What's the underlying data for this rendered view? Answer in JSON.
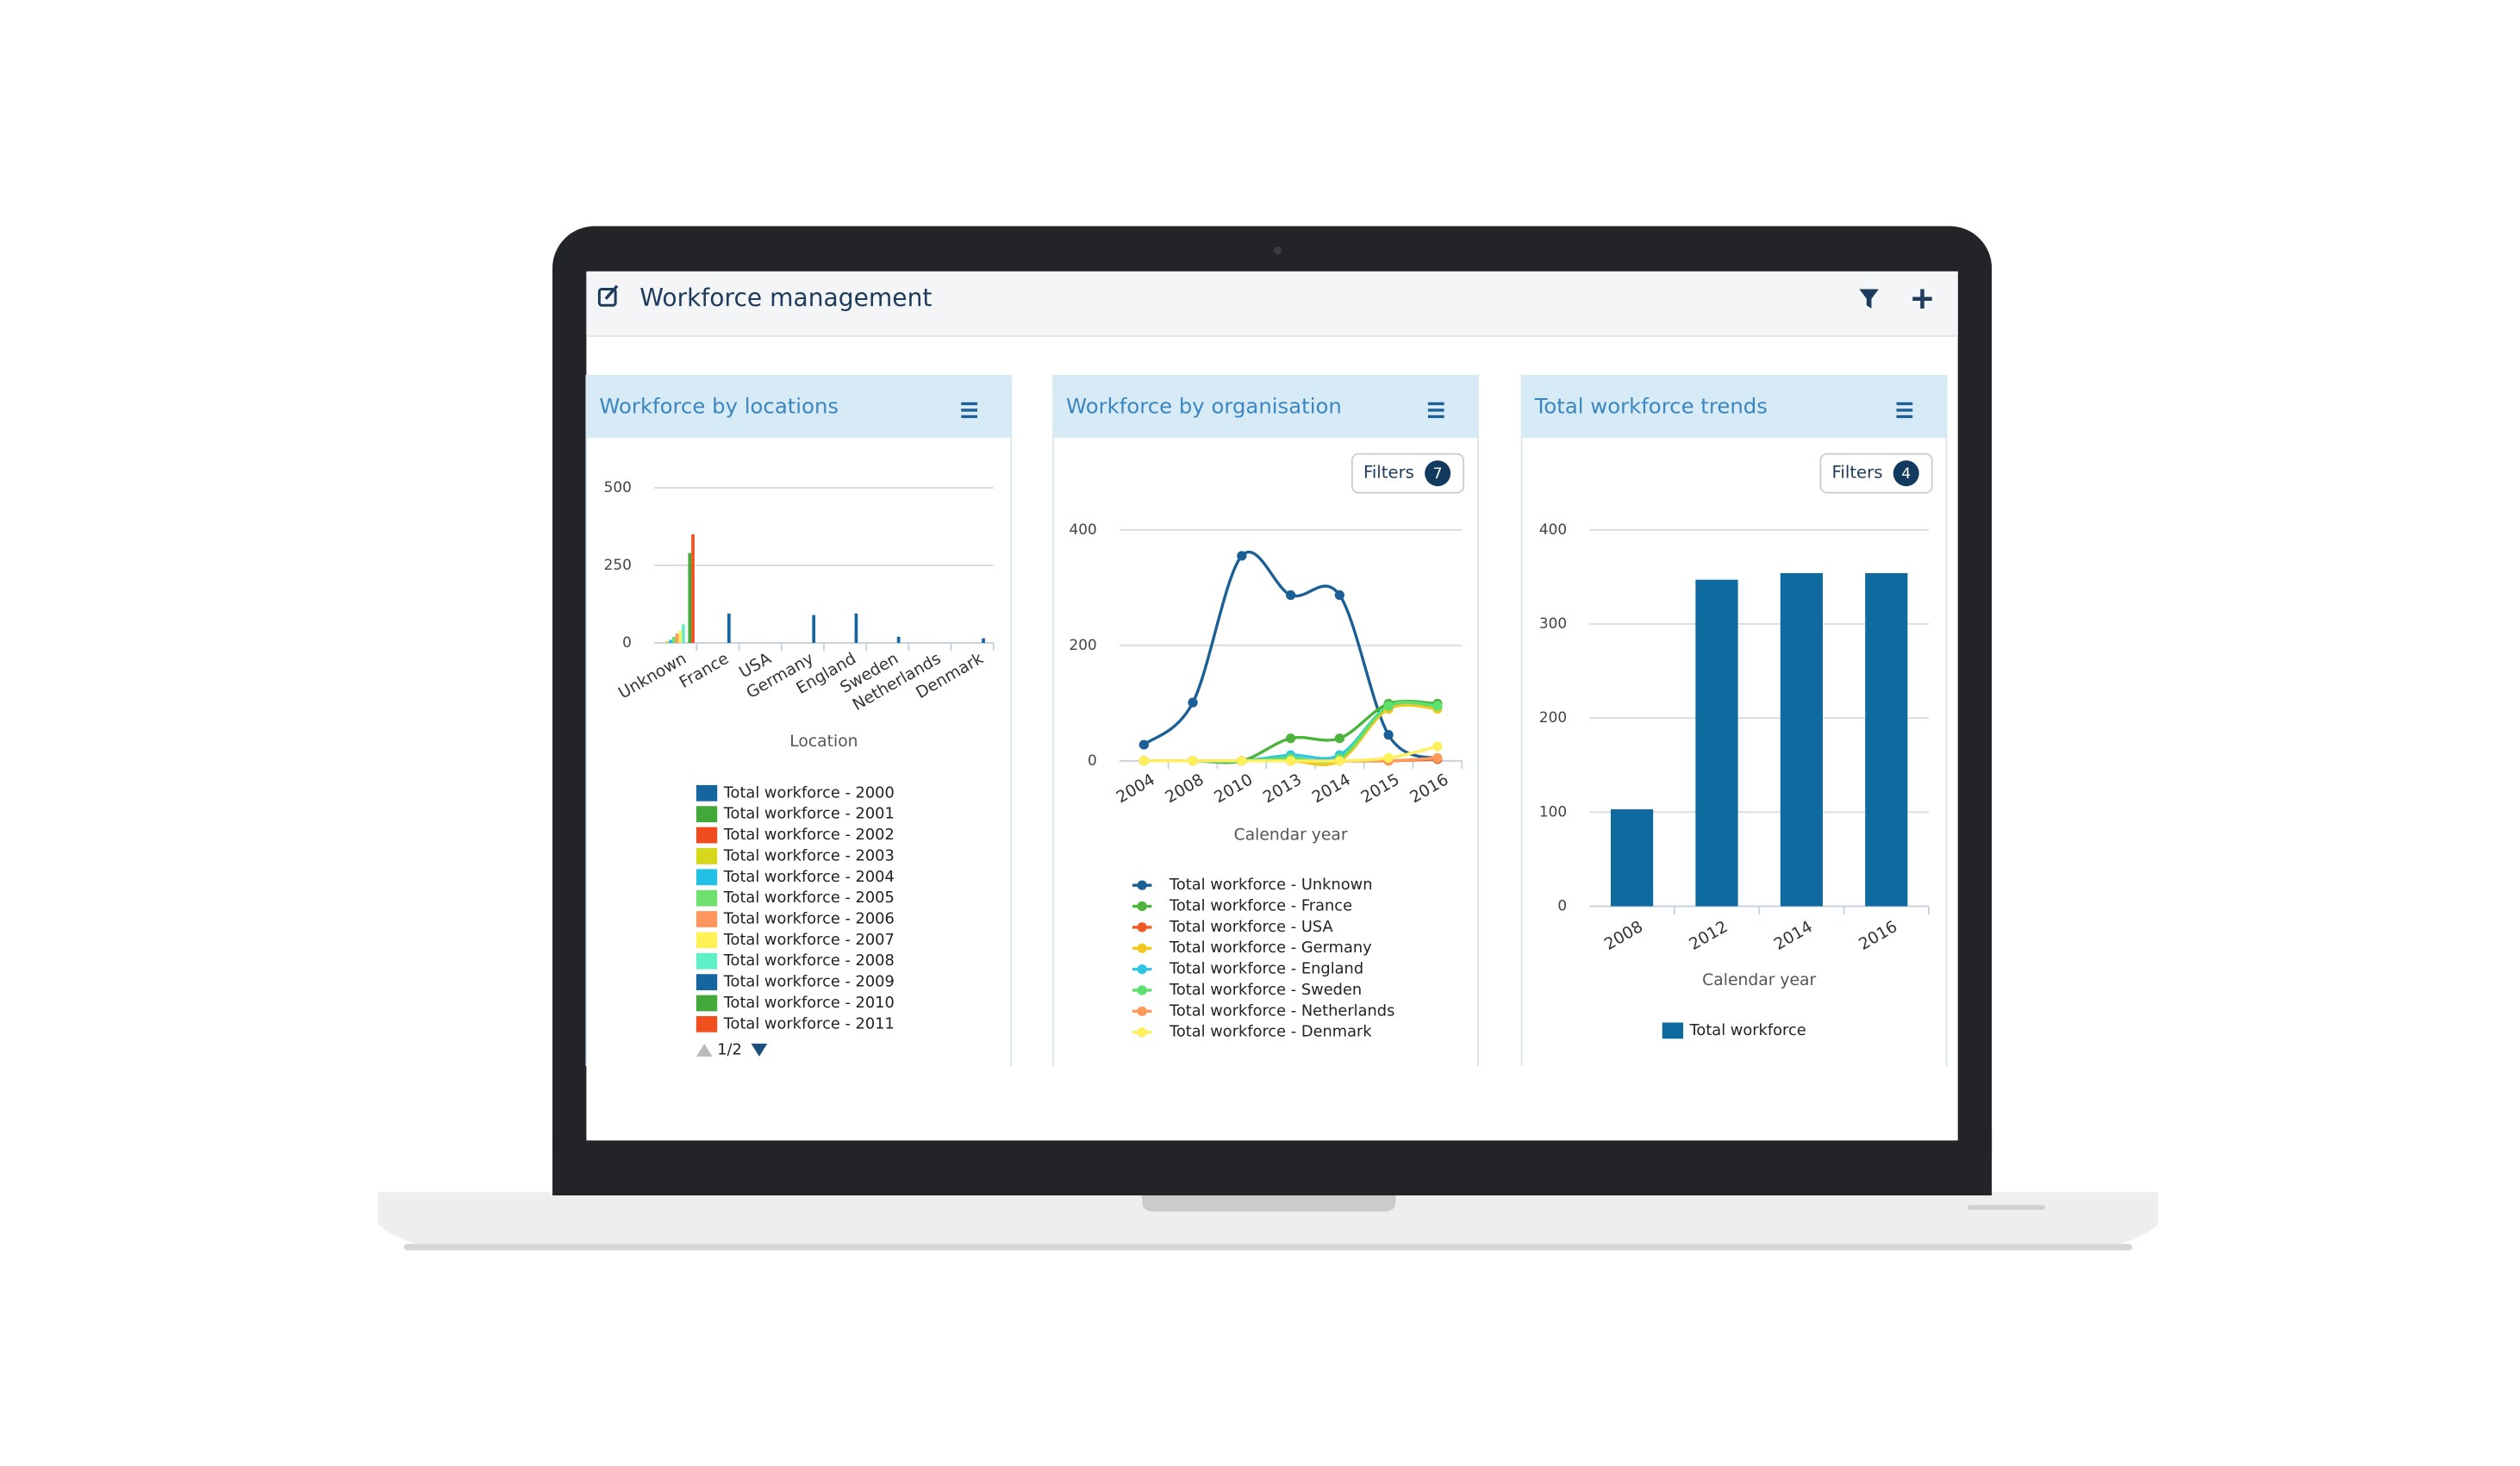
{
  "header": {
    "title": "Workforce management"
  },
  "chart_data": [
    {
      "type": "bar",
      "title": "Workforce by locations",
      "x_label": "Location",
      "categories": [
        "Unknown",
        "France",
        "USA",
        "Germany",
        "England",
        "Sweden",
        "Netherlands",
        "Denmark"
      ],
      "series": [
        {
          "name": "Total workforce - 2000",
          "color": "#1565a0",
          "values": [
            0,
            0,
            0,
            0,
            0,
            0,
            0,
            0
          ]
        },
        {
          "name": "Total workforce - 2001",
          "color": "#43a83a",
          "values": [
            0,
            0,
            0,
            0,
            0,
            0,
            0,
            0
          ]
        },
        {
          "name": "Total workforce - 2002",
          "color": "#ef4b1e",
          "values": [
            0,
            0,
            0,
            0,
            0,
            0,
            0,
            0
          ]
        },
        {
          "name": "Total workforce - 2003",
          "color": "#d6d61b",
          "values": [
            5,
            0,
            0,
            0,
            0,
            0,
            0,
            0
          ]
        },
        {
          "name": "Total workforce - 2004",
          "color": "#23c0e6",
          "values": [
            10,
            0,
            0,
            0,
            0,
            0,
            0,
            0
          ]
        },
        {
          "name": "Total workforce - 2005",
          "color": "#6ee06e",
          "values": [
            20,
            0,
            0,
            0,
            0,
            0,
            0,
            0
          ]
        },
        {
          "name": "Total workforce - 2006",
          "color": "#ff9660",
          "values": [
            30,
            0,
            0,
            0,
            0,
            0,
            0,
            0
          ]
        },
        {
          "name": "Total workforce - 2007",
          "color": "#fff157",
          "values": [
            40,
            0,
            0,
            0,
            0,
            0,
            0,
            0
          ]
        },
        {
          "name": "Total workforce - 2008",
          "color": "#60f0c8",
          "values": [
            60,
            0,
            0,
            0,
            0,
            0,
            0,
            0
          ]
        },
        {
          "name": "Total workforce - 2009",
          "color": "#1565a0",
          "values": [
            0,
            95,
            0,
            90,
            95,
            20,
            0,
            15
          ]
        },
        {
          "name": "Total workforce - 2010",
          "color": "#43a83a",
          "values": [
            290,
            0,
            0,
            0,
            0,
            0,
            0,
            0
          ]
        },
        {
          "name": "Total workforce - 2011",
          "color": "#f0501e",
          "values": [
            350,
            0,
            0,
            0,
            0,
            0,
            0,
            0
          ]
        }
      ],
      "legend_page": "1/2",
      "ylim": [
        0,
        500
      ],
      "yticks": [
        0,
        250,
        500
      ],
      "grid": true
    },
    {
      "type": "line",
      "title": "Workforce by organisation",
      "x_label": "Calendar year",
      "filters_label": "Filters",
      "filters_count": "7",
      "categories": [
        "2004",
        "2008",
        "2010",
        "2013",
        "2014",
        "2015",
        "2016"
      ],
      "series": [
        {
          "name": "Total workforce - Unknown",
          "color": "#1a5f96",
          "values": [
            28,
            101,
            355,
            287,
            287,
            45,
            3
          ]
        },
        {
          "name": "Total workforce - France",
          "color": "#4cb43c",
          "values": [
            0,
            0,
            0,
            39,
            39,
            99,
            99
          ]
        },
        {
          "name": "Total workforce - USA",
          "color": "#f05a28",
          "values": [
            0,
            0,
            0,
            0,
            0,
            0,
            3
          ]
        },
        {
          "name": "Total workforce - Germany",
          "color": "#f2c81e",
          "values": [
            0,
            0,
            0,
            0,
            0,
            90,
            90
          ]
        },
        {
          "name": "Total workforce - England",
          "color": "#2fc6e6",
          "values": [
            0,
            0,
            0,
            10,
            10,
            95,
            95
          ]
        },
        {
          "name": "Total workforce - Sweden",
          "color": "#5ce06e",
          "values": [
            0,
            0,
            0,
            5,
            5,
            95,
            95
          ]
        },
        {
          "name": "Total workforce - Netherlands",
          "color": "#ff9a5a",
          "values": [
            0,
            0,
            0,
            0,
            0,
            0,
            5
          ]
        },
        {
          "name": "Total workforce - Denmark",
          "color": "#fff05a",
          "values": [
            0,
            0,
            0,
            0,
            0,
            5,
            25
          ]
        }
      ],
      "ylim": [
        0,
        400
      ],
      "yticks": [
        0,
        200,
        400
      ],
      "grid": true
    },
    {
      "type": "bar",
      "title": "Total workforce trends",
      "x_label": "Calendar year",
      "filters_label": "Filters",
      "filters_count": "4",
      "categories": [
        "2008",
        "2012",
        "2014",
        "2016"
      ],
      "series": [
        {
          "name": "Total workforce",
          "color": "#0f6aa0",
          "values": [
            103,
            347,
            354,
            354
          ]
        }
      ],
      "ylim": [
        0,
        400
      ],
      "yticks": [
        0,
        100,
        200,
        300,
        400
      ],
      "grid": true
    }
  ]
}
